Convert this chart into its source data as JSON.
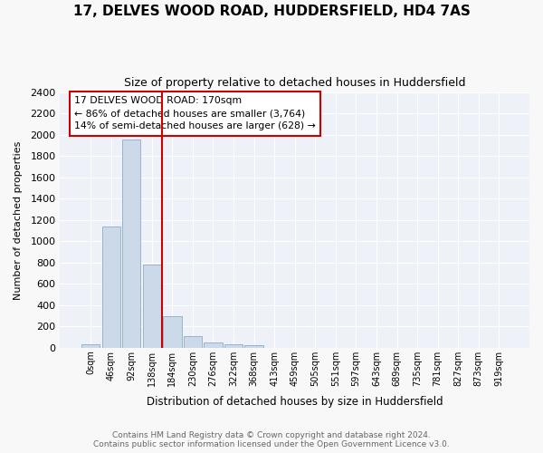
{
  "title": "17, DELVES WOOD ROAD, HUDDERSFIELD, HD4 7AS",
  "subtitle": "Size of property relative to detached houses in Huddersfield",
  "xlabel": "Distribution of detached houses by size in Huddersfield",
  "ylabel": "Number of detached properties",
  "bar_labels": [
    "0sqm",
    "46sqm",
    "92sqm",
    "138sqm",
    "184sqm",
    "230sqm",
    "276sqm",
    "322sqm",
    "368sqm",
    "413sqm",
    "459sqm",
    "505sqm",
    "551sqm",
    "597sqm",
    "643sqm",
    "689sqm",
    "735sqm",
    "781sqm",
    "827sqm",
    "873sqm",
    "919sqm"
  ],
  "bar_values": [
    30,
    1140,
    1960,
    780,
    300,
    105,
    45,
    30,
    20,
    0,
    0,
    0,
    0,
    0,
    0,
    0,
    0,
    0,
    0,
    0,
    0
  ],
  "bar_color": "#ccd9e8",
  "bar_edgecolor": "#96b4cc",
  "ylim": [
    0,
    2400
  ],
  "yticks": [
    0,
    200,
    400,
    600,
    800,
    1000,
    1200,
    1400,
    1600,
    1800,
    2000,
    2200,
    2400
  ],
  "redline_index": 4,
  "annotation_title": "17 DELVES WOOD ROAD: 170sqm",
  "annotation_line1": "← 86% of detached houses are smaller (3,764)",
  "annotation_line2": "14% of semi-detached houses are larger (628) →",
  "annotation_color": "#cc0000",
  "footer_line1": "Contains HM Land Registry data © Crown copyright and database right 2024.",
  "footer_line2": "Contains public sector information licensed under the Open Government Licence v3.0.",
  "fig_bg_color": "#f8f8f8",
  "plot_bg_color": "#eef2f8"
}
